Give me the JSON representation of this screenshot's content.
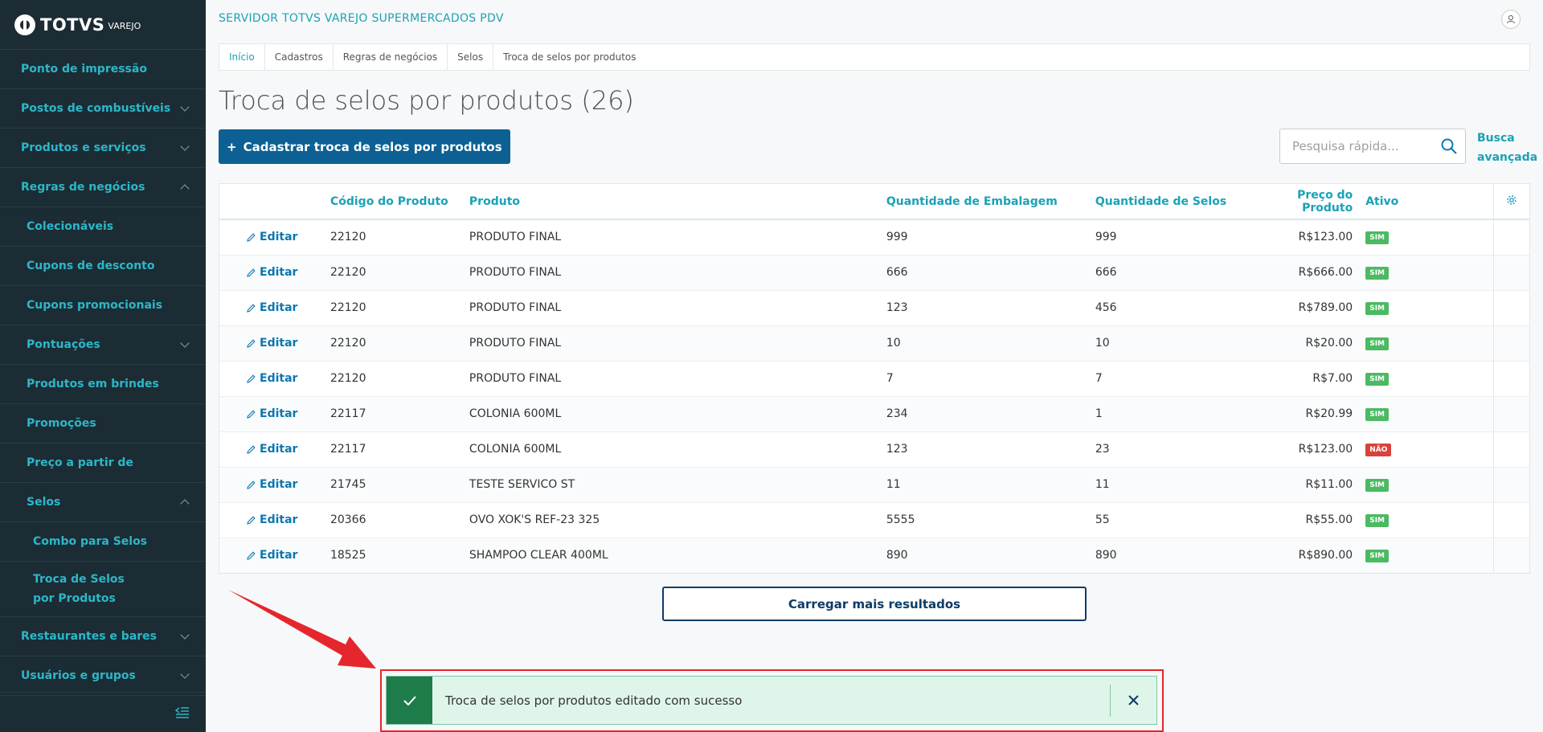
{
  "brand": {
    "name": "TOTVS",
    "sub": "VAREJO"
  },
  "header": {
    "server_name": "SERVIDOR TOTVS VAREJO SUPERMERCADOS PDV"
  },
  "sidebar": {
    "items": [
      {
        "label": "Ponto de impressão",
        "level": 0,
        "chevron": "none"
      },
      {
        "label": "Postos de combustíveis",
        "level": 0,
        "chevron": "down"
      },
      {
        "label": "Produtos e serviços",
        "level": 0,
        "chevron": "down"
      },
      {
        "label": "Regras de negócios",
        "level": 0,
        "chevron": "up"
      },
      {
        "label": "Colecionáveis",
        "level": 1,
        "chevron": "none"
      },
      {
        "label": "Cupons de desconto",
        "level": 1,
        "chevron": "none"
      },
      {
        "label": "Cupons promocionais",
        "level": 1,
        "chevron": "none"
      },
      {
        "label": "Pontuações",
        "level": 1,
        "chevron": "down"
      },
      {
        "label": "Produtos em brindes",
        "level": 1,
        "chevron": "none"
      },
      {
        "label": "Promoções",
        "level": 1,
        "chevron": "none"
      },
      {
        "label": "Preço a partir de",
        "level": 1,
        "chevron": "none"
      },
      {
        "label": "Selos",
        "level": 1,
        "chevron": "up"
      },
      {
        "label": "Combo para Selos",
        "level": 2,
        "chevron": "none"
      },
      {
        "label": "Troca de Selos por Produtos",
        "level": 2,
        "chevron": "none"
      },
      {
        "label": "Restaurantes e bares",
        "level": 0,
        "chevron": "down"
      },
      {
        "label": "Usuários e grupos",
        "level": 0,
        "chevron": "down"
      }
    ]
  },
  "breadcrumb": [
    "Início",
    "Cadastros",
    "Regras de negócios",
    "Selos",
    "Troca de selos por produtos"
  ],
  "page": {
    "title": "Troca de selos por produtos (26)",
    "add_button": "Cadastrar troca de selos por produtos",
    "search_placeholder": "Pesquisa rápida...",
    "advanced_search": "Busca avançada",
    "load_more": "Carregar mais resultados"
  },
  "table": {
    "columns": [
      "Código do Produto",
      "Produto",
      "Quantidade de Embalagem",
      "Quantidade de Selos",
      "Preço do Produto",
      "Ativo"
    ],
    "edit_label": "Editar",
    "rows": [
      {
        "code": "22120",
        "product": "PRODUTO FINAL",
        "pack_qty": "999",
        "seal_qty": "999",
        "price": "R$123.00",
        "active": "SIM"
      },
      {
        "code": "22120",
        "product": "PRODUTO FINAL",
        "pack_qty": "666",
        "seal_qty": "666",
        "price": "R$666.00",
        "active": "SIM"
      },
      {
        "code": "22120",
        "product": "PRODUTO FINAL",
        "pack_qty": "123",
        "seal_qty": "456",
        "price": "R$789.00",
        "active": "SIM"
      },
      {
        "code": "22120",
        "product": "PRODUTO FINAL",
        "pack_qty": "10",
        "seal_qty": "10",
        "price": "R$20.00",
        "active": "SIM"
      },
      {
        "code": "22120",
        "product": "PRODUTO FINAL",
        "pack_qty": "7",
        "seal_qty": "7",
        "price": "R$7.00",
        "active": "SIM"
      },
      {
        "code": "22117",
        "product": "COLONIA 600ML",
        "pack_qty": "234",
        "seal_qty": "1",
        "price": "R$20.99",
        "active": "SIM"
      },
      {
        "code": "22117",
        "product": "COLONIA 600ML",
        "pack_qty": "123",
        "seal_qty": "23",
        "price": "R$123.00",
        "active": "NÃO"
      },
      {
        "code": "21745",
        "product": "TESTE SERVICO ST",
        "pack_qty": "11",
        "seal_qty": "11",
        "price": "R$11.00",
        "active": "SIM"
      },
      {
        "code": "20366",
        "product": "OVO XOK'S REF-23 325",
        "pack_qty": "5555",
        "seal_qty": "55",
        "price": "R$55.00",
        "active": "SIM"
      },
      {
        "code": "18525",
        "product": "SHAMPOO CLEAR 400ML",
        "pack_qty": "890",
        "seal_qty": "890",
        "price": "R$890.00",
        "active": "SIM"
      }
    ]
  },
  "toast": {
    "message": "Troca de selos por produtos editado com sucesso",
    "type": "success"
  },
  "colors": {
    "sidebar_bg": "#1c2c34",
    "accent": "#1aa2b6",
    "primary_button": "#0c6093",
    "success": "#4cb963",
    "danger": "#d9423b",
    "highlight": "#e5262c"
  }
}
